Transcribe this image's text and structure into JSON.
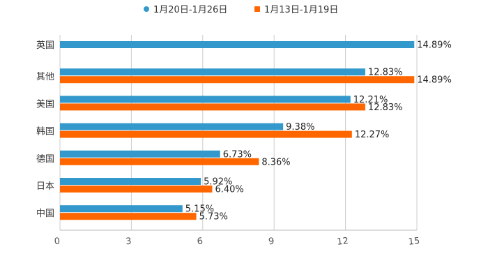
{
  "chart_data": {
    "type": "bar",
    "orientation": "horizontal",
    "categories": [
      "英国",
      "其他",
      "美国",
      "韩国",
      "德国",
      "日本",
      "中国"
    ],
    "series": [
      {
        "name": "1月20日-1月26日",
        "color": "#3399cc",
        "values": [
          14.89,
          12.83,
          12.21,
          9.38,
          6.73,
          5.92,
          5.15
        ],
        "labels": [
          "14.89%",
          "12.83%",
          "12.21%",
          "9.38%",
          "6.73%",
          "5.92%",
          "5.15%"
        ]
      },
      {
        "name": "1月13日-1月19日",
        "color": "#ff6600",
        "values": [
          null,
          14.89,
          12.83,
          12.27,
          8.36,
          6.4,
          5.73
        ],
        "labels": [
          null,
          "14.89%",
          "12.83%",
          "12.27%",
          "8.36%",
          "6.40%",
          "5.73%"
        ]
      }
    ],
    "xlim": [
      0,
      15
    ],
    "xticks": [
      0,
      3,
      6,
      9,
      12,
      15
    ],
    "xtick_labels": [
      "0",
      "3",
      "6",
      "9",
      "12",
      "15"
    ],
    "grid": true,
    "legend_position": "top-center",
    "title": "",
    "xlabel": "",
    "ylabel": ""
  }
}
